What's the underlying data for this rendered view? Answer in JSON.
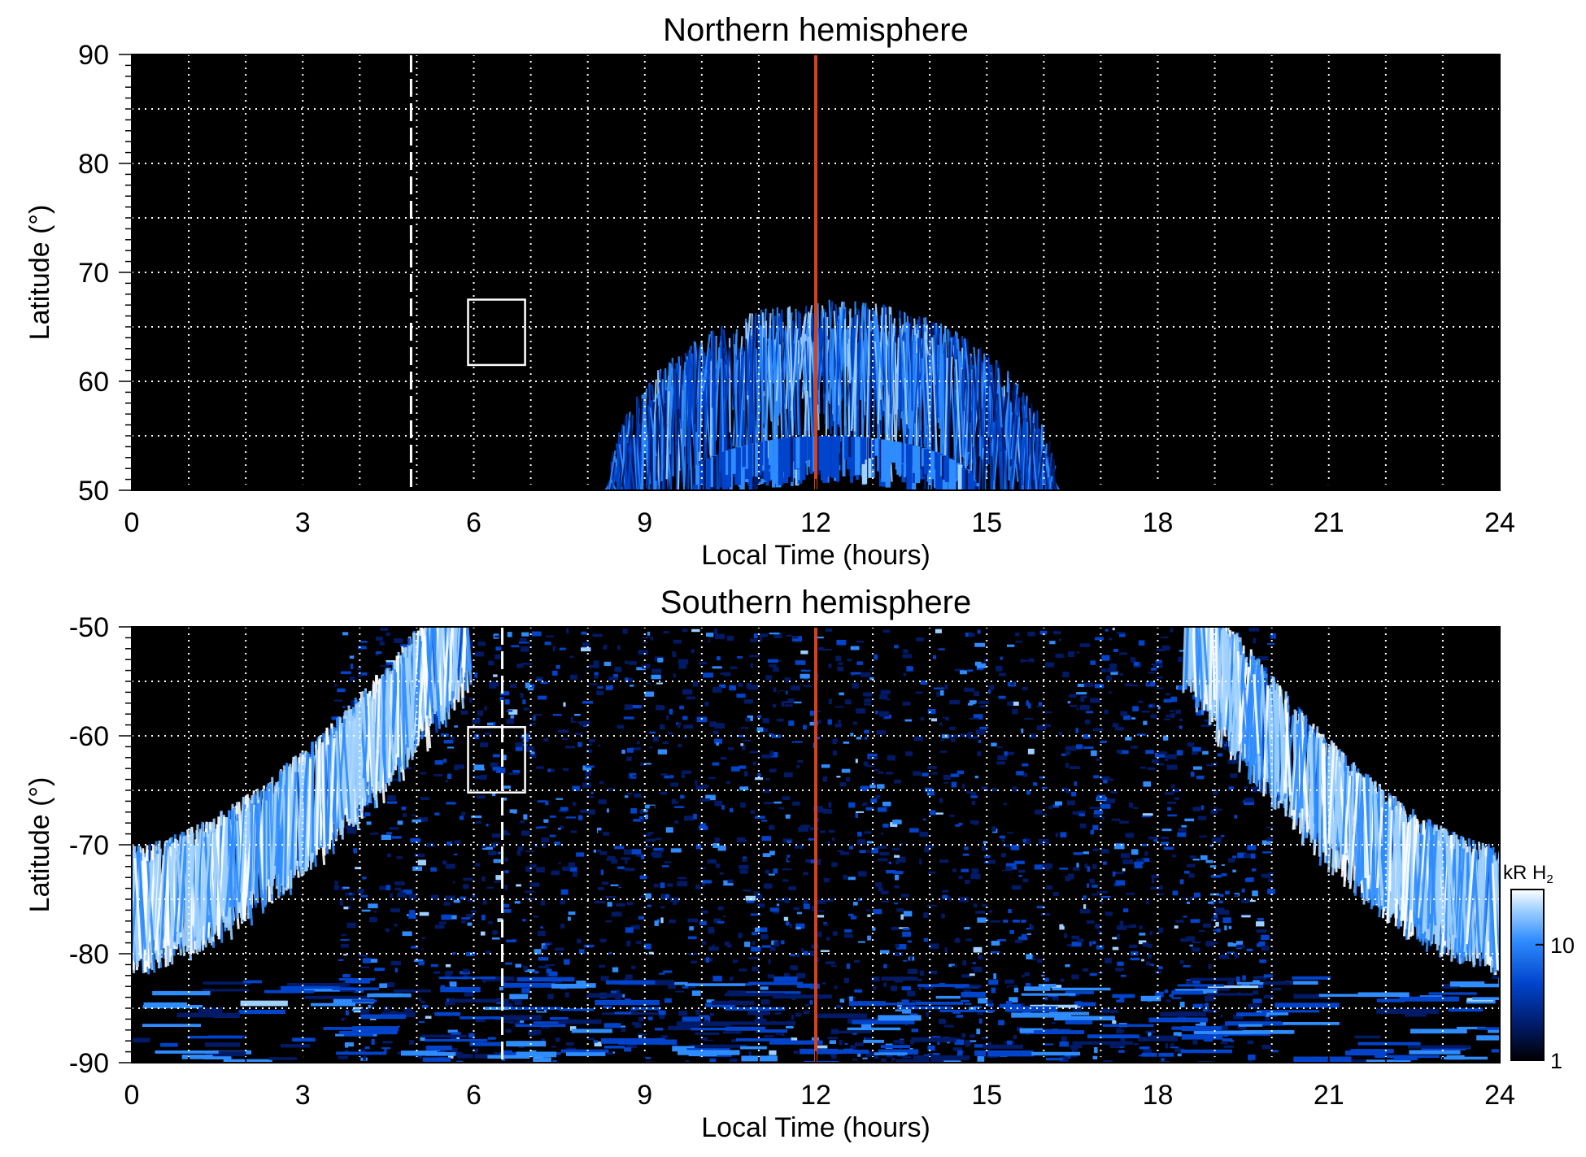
{
  "chart_data": [
    {
      "type": "heatmap",
      "title": "Northern hemisphere",
      "xlabel": "Local Time (hours)",
      "ylabel": "Latitude (°)",
      "xlim": [
        0,
        24
      ],
      "ylim": [
        50,
        90
      ],
      "xticks": [
        0,
        3,
        6,
        9,
        12,
        15,
        18,
        21,
        24
      ],
      "xtick_labels": [
        "0",
        "3",
        "6",
        "9",
        "12",
        "15",
        "18",
        "21",
        "24"
      ],
      "yticks": [
        50,
        60,
        70,
        80,
        90
      ],
      "ytick_labels": [
        "50",
        "60",
        "70",
        "80",
        "90"
      ],
      "grid": true,
      "background": "#000000",
      "emission": {
        "shape": "arc",
        "center_lt": 12.3,
        "lt_range": [
          8.4,
          16.3
        ],
        "peak_latitude": 62,
        "brightness_kR": [
          3,
          20
        ],
        "inner_arc_peak_latitude": 54
      },
      "markers": {
        "red_line_lt": 12,
        "dashed_line_lt": 4.9,
        "box": {
          "lt": [
            5.9,
            6.9
          ],
          "lat": [
            61.5,
            67.5
          ]
        }
      }
    },
    {
      "type": "heatmap",
      "title": "Southern hemisphere",
      "xlabel": "Local Time (hours)",
      "ylabel": "Latitude (°)",
      "xlim": [
        0,
        24
      ],
      "ylim": [
        -90,
        -50
      ],
      "xticks": [
        0,
        3,
        6,
        9,
        12,
        15,
        18,
        21,
        24
      ],
      "xtick_labels": [
        "0",
        "3",
        "6",
        "9",
        "12",
        "15",
        "18",
        "21",
        "24"
      ],
      "yticks": [
        -90,
        -80,
        -70,
        -60,
        -50
      ],
      "ytick_labels": [
        "-90",
        "-80",
        "-70",
        "-60",
        "-50"
      ],
      "grid": true,
      "background": "#000000",
      "emission": {
        "shape": "u-shaped oval",
        "left_arm_lt": [
          0,
          5.9
        ],
        "right_arm_lt": [
          18.5,
          24
        ],
        "oval_latitude_midnight": -76,
        "oval_latitude_top": -50,
        "brightness_kR": [
          5,
          30
        ],
        "polar_cap_kR": [
          1,
          5
        ]
      },
      "markers": {
        "red_line_lt": 12,
        "dashed_line_lt": 6.5,
        "box": {
          "lt": [
            5.9,
            6.9
          ],
          "lat": [
            -65.2,
            -59.2
          ]
        }
      }
    }
  ],
  "colorbar": {
    "label": "kR H",
    "label_subscript": "2",
    "scale": "log",
    "range": [
      1,
      30
    ],
    "ticks": [
      1,
      10
    ],
    "tick_labels": [
      "1",
      "10"
    ],
    "colors": [
      "#000000",
      "#001a66",
      "#0044cc",
      "#2f8cff",
      "#9fd0ff",
      "#ffffff"
    ]
  },
  "colors": {
    "red_line": "#d8401c",
    "grid": "#ffffff",
    "frame": "#000000"
  }
}
